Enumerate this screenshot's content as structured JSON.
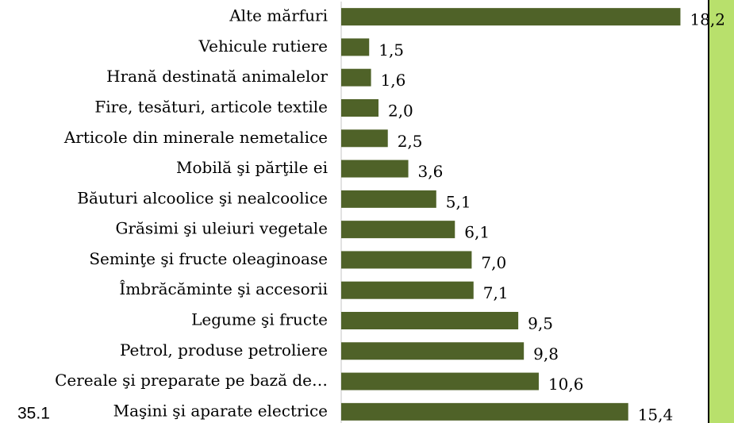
{
  "chart_data": {
    "type": "barh",
    "categories": [
      "Alte mărfuri",
      "Vehicule rutiere",
      "Hrană destinată animalelor",
      "Fire, tesături, articole textile",
      "Articole din minerale nemetalice",
      "Mobilă şi părţile ei",
      "Băuturi alcoolice şi nealcoolice",
      "Grăsimi şi uleiuri vegetale",
      "Seminţe şi fructe oleaginoase",
      "Îmbrăcăminte şi accesorii",
      "Legume şi fructe",
      "Petrol, produse petroliere",
      "Cereale şi preparate pe bază de…",
      "Maşini şi aparate electrice"
    ],
    "values": [
      18.2,
      1.5,
      1.6,
      2.0,
      2.5,
      3.6,
      5.1,
      6.1,
      7.0,
      7.1,
      9.5,
      9.8,
      10.6,
      15.4
    ],
    "value_labels": [
      "18,2",
      "1,5",
      "1,6",
      "2,0",
      "2,5",
      "3,6",
      "5,1",
      "6,1",
      "7,0",
      "7,1",
      "9,5",
      "9,8",
      "10,6",
      "15,4"
    ],
    "color": "#4f6228",
    "xlim": [
      0,
      19.5
    ],
    "annotation": "35.1"
  }
}
